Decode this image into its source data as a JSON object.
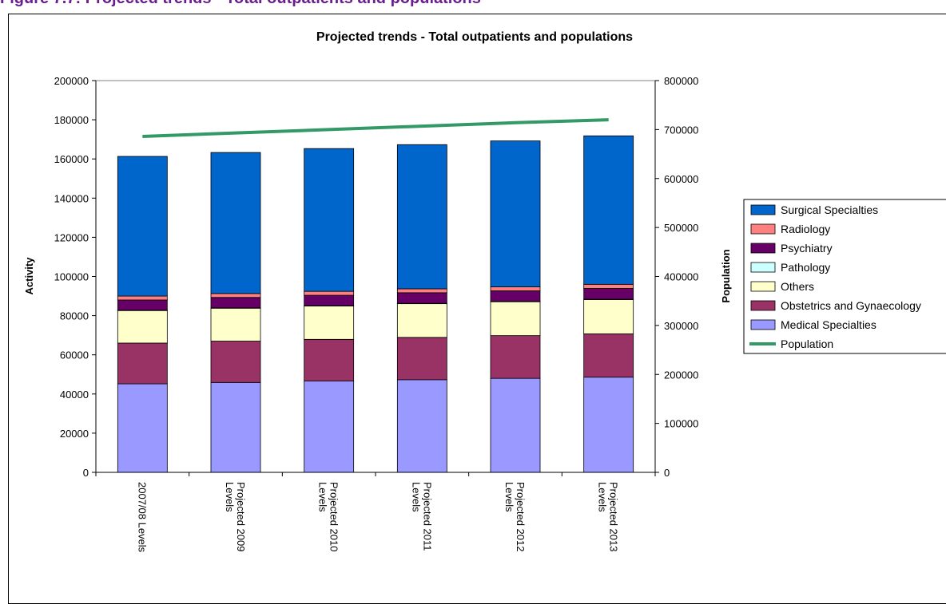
{
  "page": {
    "heading": "Figure 7.7: Projected trends - Total outpatients and populations"
  },
  "chart_data": {
    "type": "bar",
    "stacked": true,
    "title": "Projected trends - Total outpatients and populations",
    "ylabel": "Activity",
    "y2label": "Population",
    "ylim": [
      0,
      200000
    ],
    "y2lim": [
      0,
      800000
    ],
    "yticks": [
      "0",
      "20000",
      "40000",
      "60000",
      "80000",
      "100000",
      "120000",
      "140000",
      "160000",
      "180000",
      "200000"
    ],
    "y2ticks": [
      "0",
      "100000",
      "200000",
      "300000",
      "400000",
      "500000",
      "600000",
      "700000",
      "800000"
    ],
    "categories": [
      "2007/08 Levels",
      "Projected 2009 Levels",
      "Projected 2010 Levels",
      "Projected 2011 Levels",
      "Projected 2012 Levels",
      "Projected 2013 Levels"
    ],
    "category_lines": [
      [
        "2007/08 Levels"
      ],
      [
        "Projected 2009",
        "Levels"
      ],
      [
        "Projected 2010",
        "Levels"
      ],
      [
        "Projected 2011",
        "Levels"
      ],
      [
        "Projected 2012",
        "Levels"
      ],
      [
        "Projected 2013",
        "Levels"
      ]
    ],
    "series": [
      {
        "name": "Medical Specialties",
        "color": "#9999ff",
        "values": [
          45200,
          45900,
          46600,
          47300,
          48000,
          48600
        ]
      },
      {
        "name": "Obstetrics and Gynaecology",
        "color": "#993366",
        "values": [
          20800,
          21100,
          21300,
          21600,
          21800,
          22100
        ]
      },
      {
        "name": "Others",
        "color": "#ffffcc",
        "values": [
          16600,
          16800,
          17000,
          17200,
          17300,
          17500
        ]
      },
      {
        "name": "Pathology",
        "color": "#ccffff",
        "values": [
          200,
          200,
          200,
          200,
          200,
          200
        ]
      },
      {
        "name": "Psychiatry",
        "color": "#660066",
        "values": [
          5200,
          5300,
          5300,
          5400,
          5400,
          5500
        ]
      },
      {
        "name": "Radiology",
        "color": "#ff8080",
        "values": [
          2000,
          2000,
          2000,
          2000,
          2000,
          2100
        ]
      },
      {
        "name": "Surgical Specialties",
        "color": "#0066cc",
        "values": [
          71300,
          72000,
          72900,
          73600,
          74500,
          75800
        ]
      }
    ],
    "line_series": {
      "name": "Population",
      "color": "#339966",
      "axis": "secondary",
      "values": [
        686000,
        693000,
        700000,
        707000,
        714000,
        720000
      ]
    },
    "legend_order": [
      "Surgical Specialties",
      "Radiology",
      "Psychiatry",
      "Pathology",
      "Others",
      "Obstetrics and Gynaecology",
      "Medical Specialties",
      "Population"
    ],
    "legend_position": "right"
  }
}
